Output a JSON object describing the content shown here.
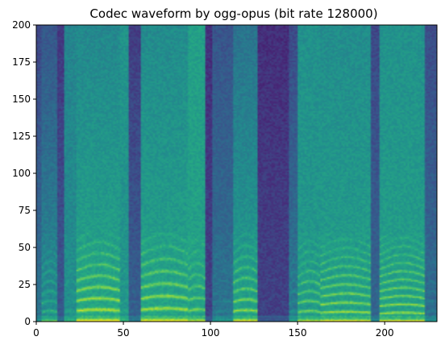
{
  "chart_data": {
    "type": "heatmap",
    "title": "Codec waveform by ogg-opus (bit rate 128000)",
    "xlabel": "",
    "ylabel": "",
    "xlim": [
      0,
      230
    ],
    "ylim": [
      0,
      200
    ],
    "x_ticks": [
      0,
      50,
      100,
      150,
      200
    ],
    "y_ticks": [
      0,
      25,
      50,
      75,
      100,
      125,
      150,
      175,
      200
    ],
    "x_tick_labels": [
      "0",
      "50",
      "100",
      "150",
      "200"
    ],
    "y_tick_labels": [
      "0",
      "25",
      "50",
      "75",
      "100",
      "125",
      "150",
      "175",
      "200"
    ],
    "colormap": "viridis",
    "grid": false,
    "legend": "none",
    "segments": [
      {
        "x_start": 0,
        "x_end": 3,
        "energy": 0.5,
        "pitch": 6,
        "harmonic_strength": 0.1,
        "top_fraction": 0.3
      },
      {
        "x_start": 3,
        "x_end": 12,
        "energy": 0.7,
        "pitch": 6,
        "harmonic_strength": 0.5,
        "top_fraction": 0.35
      },
      {
        "x_start": 12,
        "x_end": 16,
        "energy": 0.3,
        "pitch": 6,
        "harmonic_strength": 0.0,
        "top_fraction": 0.2
      },
      {
        "x_start": 16,
        "x_end": 23,
        "energy": 0.7,
        "pitch": 6,
        "harmonic_strength": 0.2,
        "top_fraction": 0.9
      },
      {
        "x_start": 23,
        "x_end": 48,
        "energy": 0.9,
        "pitch": 6.8,
        "harmonic_strength": 0.9,
        "top_fraction": 0.7
      },
      {
        "x_start": 48,
        "x_end": 53,
        "energy": 0.75,
        "pitch": 6,
        "harmonic_strength": 0.2,
        "top_fraction": 1.0
      },
      {
        "x_start": 53,
        "x_end": 60,
        "energy": 0.35,
        "pitch": 6,
        "harmonic_strength": 0.1,
        "top_fraction": 0.25
      },
      {
        "x_start": 60,
        "x_end": 87,
        "energy": 0.88,
        "pitch": 7.5,
        "harmonic_strength": 0.85,
        "top_fraction": 0.75
      },
      {
        "x_start": 87,
        "x_end": 97,
        "energy": 0.85,
        "pitch": 7,
        "harmonic_strength": 0.6,
        "top_fraction": 1.0
      },
      {
        "x_start": 97,
        "x_end": 101,
        "energy": 0.15,
        "pitch": 6,
        "harmonic_strength": 0.0,
        "top_fraction": 0.2
      },
      {
        "x_start": 101,
        "x_end": 113,
        "energy": 0.5,
        "pitch": 6,
        "harmonic_strength": 0.2,
        "top_fraction": 0.5
      },
      {
        "x_start": 113,
        "x_end": 127,
        "energy": 0.85,
        "pitch": 6.5,
        "harmonic_strength": 0.8,
        "top_fraction": 0.55
      },
      {
        "x_start": 127,
        "x_end": 145,
        "energy": 0.15,
        "pitch": 6,
        "harmonic_strength": 0.0,
        "top_fraction": 0.15
      },
      {
        "x_start": 145,
        "x_end": 150,
        "energy": 0.55,
        "pitch": 6,
        "harmonic_strength": 0.3,
        "top_fraction": 0.3
      },
      {
        "x_start": 150,
        "x_end": 163,
        "energy": 0.8,
        "pitch": 6,
        "harmonic_strength": 0.7,
        "top_fraction": 0.9
      },
      {
        "x_start": 163,
        "x_end": 192,
        "energy": 0.85,
        "pitch": 5.5,
        "harmonic_strength": 0.85,
        "top_fraction": 0.8
      },
      {
        "x_start": 192,
        "x_end": 197,
        "energy": 0.4,
        "pitch": 6,
        "harmonic_strength": 0.1,
        "top_fraction": 0.4
      },
      {
        "x_start": 197,
        "x_end": 223,
        "energy": 0.85,
        "pitch": 5,
        "harmonic_strength": 0.85,
        "top_fraction": 0.85
      },
      {
        "x_start": 223,
        "x_end": 230,
        "energy": 0.45,
        "pitch": 6,
        "harmonic_strength": 0.2,
        "top_fraction": 0.4
      }
    ]
  }
}
